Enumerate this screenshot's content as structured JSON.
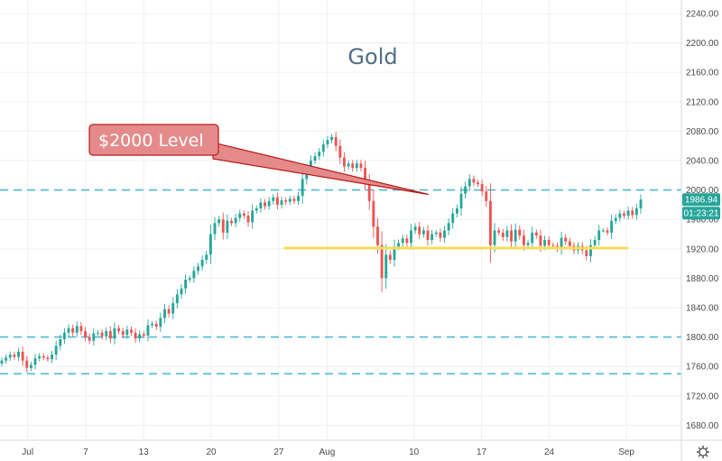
{
  "chart_data": {
    "type": "candlestick",
    "title": "Gold",
    "xlabel": "",
    "ylabel": "",
    "ylim": [
      1640,
      2260
    ],
    "y_ticks": [
      1680,
      1720,
      1760,
      1800,
      1840,
      1880,
      1920,
      1960,
      2000,
      2040,
      2080,
      2120,
      2160,
      2200,
      2240
    ],
    "y_tick_labels": [
      "1680.00",
      "1720.00",
      "1760.00",
      "1800.00",
      "1840.00",
      "1880.00",
      "1920.00",
      "1960.00",
      "2000.00",
      "2040.00",
      "2080.00",
      "2120.00",
      "2160.00",
      "2200.00",
      "2240.00"
    ],
    "x_tick_labels": [
      "Jul",
      "7",
      "13",
      "20",
      "27",
      "Aug",
      "10",
      "17",
      "24",
      "Sep"
    ],
    "x_tick_day_index": [
      1,
      7,
      13,
      20,
      27,
      32,
      41,
      48,
      55,
      63
    ],
    "grid": true,
    "colors": {
      "up": "#26a69a",
      "down": "#ef5350",
      "dashed_level": "#4fb8d6",
      "support_line": "#f5dd5b",
      "callout_fill": "#e58a8a",
      "callout_border": "#b71c1c",
      "price_tag": "#26a69a"
    },
    "levels": [
      {
        "price": 2000,
        "style": "dashed"
      },
      {
        "price": 1800,
        "style": "dashed"
      },
      {
        "price": 1750,
        "style": "dashed"
      }
    ],
    "support_line": {
      "price": 1921,
      "from_day": 27.5,
      "to_day": 63
    },
    "annotations": [
      {
        "text": "$2000 Level",
        "pointer_day": 42.5,
        "pointer_price": 1994
      }
    ],
    "last_price": "1986.94",
    "countdown": "01:23:21",
    "closes": [
      1768,
      1772,
      1776,
      1773,
      1780,
      1768,
      1758,
      1762,
      1771,
      1774,
      1772,
      1770,
      1776,
      1788,
      1797,
      1806,
      1812,
      1806,
      1815,
      1808,
      1800,
      1795,
      1805,
      1806,
      1801,
      1808,
      1798,
      1812,
      1808,
      1803,
      1810,
      1806,
      1798,
      1804,
      1802,
      1816,
      1818,
      1814,
      1826,
      1838,
      1832,
      1846,
      1858,
      1866,
      1878,
      1880,
      1890,
      1896,
      1905,
      1912,
      1940,
      1955,
      1960,
      1942,
      1958,
      1955,
      1962,
      1968,
      1965,
      1956,
      1972,
      1975,
      1983,
      1978,
      1985,
      1990,
      1980,
      1986,
      1984,
      1988,
      1985,
      1992,
      2015,
      2028,
      2040,
      2046,
      2052,
      2062,
      2068,
      2072,
      2060,
      2044,
      2032,
      2036,
      2030,
      2036,
      2030,
      2010,
      1985,
      1950,
      1925,
      1880,
      1912,
      1905,
      1923,
      1928,
      1934,
      1928,
      1945,
      1950,
      1940,
      1945,
      1932,
      1940,
      1942,
      1935,
      1945,
      1955,
      1968,
      1975,
      1995,
      2005,
      2015,
      2010,
      2008,
      1998,
      1985,
      1925,
      1945,
      1942,
      1936,
      1945,
      1930,
      1946,
      1938,
      1925,
      1928,
      1942,
      1938,
      1924,
      1932,
      1925,
      1924,
      1920,
      1935,
      1930,
      1924,
      1918,
      1924,
      1918,
      1910,
      1925,
      1932,
      1945,
      1945,
      1942,
      1958,
      1962,
      1968,
      1965,
      1972,
      1966,
      1975,
      1987
    ]
  }
}
